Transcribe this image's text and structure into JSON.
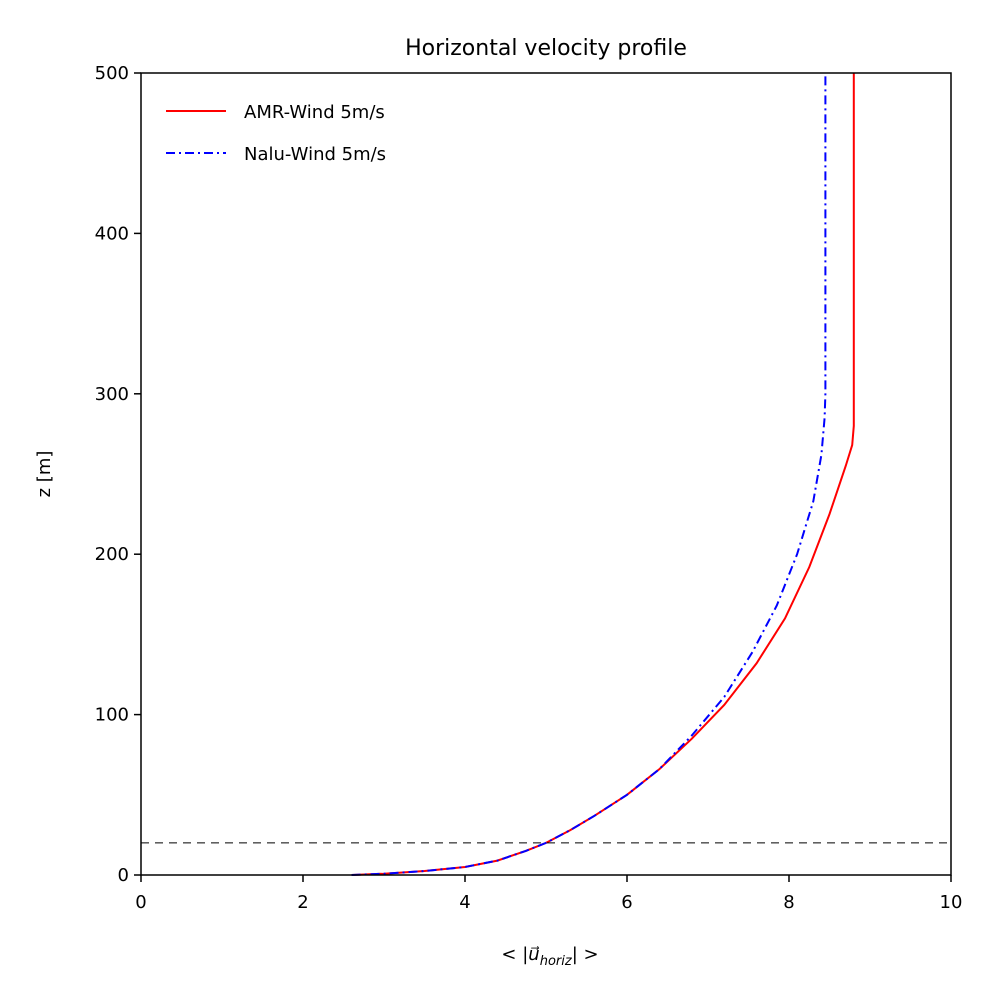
{
  "chart_data": {
    "type": "line",
    "title": "Horizontal velocity profile",
    "xlabel": "< |u⃗_horiz| >",
    "xlabel_parts": {
      "open": "< |",
      "vec": "u⃗",
      "sub": "horiz",
      "close": "| >"
    },
    "ylabel": "z [m]",
    "xlim": [
      0,
      10
    ],
    "ylim": [
      0,
      500
    ],
    "xticks": [
      0,
      2,
      4,
      6,
      8,
      10
    ],
    "yticks": [
      0,
      100,
      200,
      300,
      400,
      500
    ],
    "grid": false,
    "legend_position": "upper-left",
    "reference_line": {
      "z": 20,
      "style": "dashed",
      "color": "#000000"
    },
    "series": [
      {
        "name": "AMR-Wind 5m/s",
        "color": "#ff0000",
        "style": "solid",
        "points": [
          [
            2.6,
            0
          ],
          [
            3.0,
            0.8
          ],
          [
            3.5,
            2.5
          ],
          [
            4.0,
            5
          ],
          [
            4.4,
            9
          ],
          [
            4.75,
            15
          ],
          [
            5.0,
            20
          ],
          [
            5.3,
            28
          ],
          [
            5.6,
            37
          ],
          [
            6.0,
            50
          ],
          [
            6.4,
            66
          ],
          [
            6.8,
            85
          ],
          [
            7.2,
            106
          ],
          [
            7.6,
            132
          ],
          [
            7.95,
            160
          ],
          [
            8.25,
            192
          ],
          [
            8.5,
            225
          ],
          [
            8.7,
            255
          ],
          [
            8.78,
            268
          ],
          [
            8.8,
            280
          ],
          [
            8.8,
            500
          ]
        ]
      },
      {
        "name": "Nalu-Wind 5m/s",
        "color": "#0000ff",
        "style": "dashdot",
        "points": [
          [
            2.6,
            0
          ],
          [
            3.0,
            0.8
          ],
          [
            3.5,
            2.5
          ],
          [
            4.0,
            5
          ],
          [
            4.4,
            9
          ],
          [
            4.75,
            15
          ],
          [
            5.0,
            20
          ],
          [
            5.3,
            28
          ],
          [
            5.6,
            37
          ],
          [
            6.0,
            50
          ],
          [
            6.4,
            66
          ],
          [
            6.8,
            87
          ],
          [
            7.2,
            111
          ],
          [
            7.55,
            139
          ],
          [
            7.85,
            168
          ],
          [
            8.1,
            200
          ],
          [
            8.3,
            233
          ],
          [
            8.4,
            262
          ],
          [
            8.44,
            285
          ],
          [
            8.45,
            300
          ],
          [
            8.45,
            500
          ]
        ]
      }
    ]
  }
}
